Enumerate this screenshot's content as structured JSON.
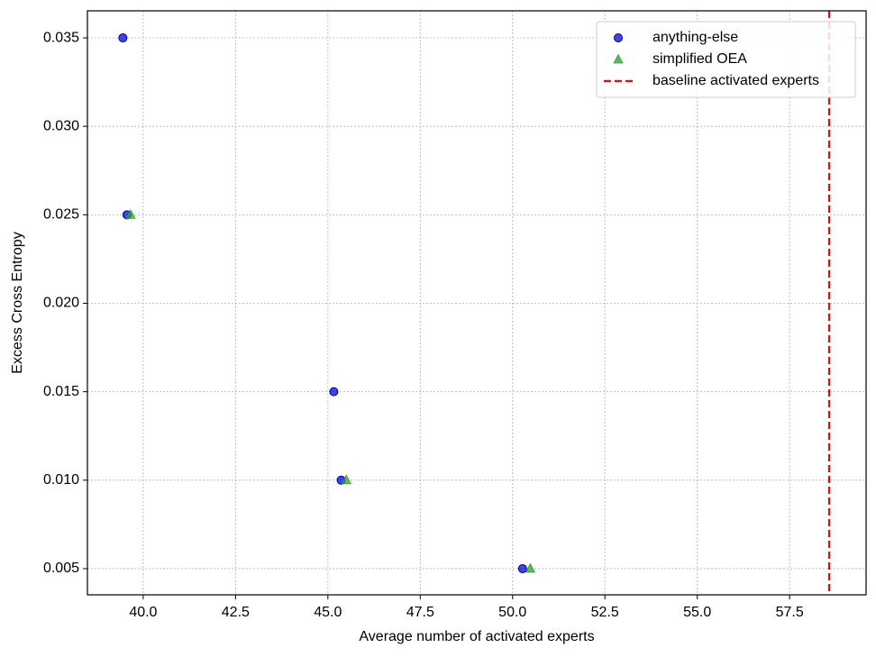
{
  "chart_data": {
    "type": "scatter",
    "x_label": "Average number of activated experts",
    "y_label": "Excess Cross Entropy",
    "xlim": [
      38.49,
      59.57
    ],
    "ylim": [
      0.00352,
      0.03653
    ],
    "xticks": [
      {
        "value": 40,
        "label": "40.0"
      },
      42.5,
      {
        "value": 45,
        "label": "45.0"
      },
      47.5,
      {
        "value": 50,
        "label": "50.0"
      },
      52.5,
      {
        "value": 55,
        "label": "55.0"
      },
      57.5
    ],
    "yticks": [
      0.005,
      {
        "value": 0.01,
        "label": "0.010"
      },
      0.015,
      {
        "value": 0.02,
        "label": "0.020"
      },
      0.025,
      {
        "value": 0.03,
        "label": "0.030"
      },
      0.035
    ],
    "grid": true,
    "legend": "upper right",
    "series": [
      {
        "name": "anything-else",
        "color": "#0000ff",
        "marker": "circle",
        "x": [
          39.45,
          39.56,
          45.16,
          45.36,
          50.27
        ],
        "values": [
          0.035,
          0.025,
          0.015,
          0.01,
          0.005
        ]
      },
      {
        "name": "simplified OEA",
        "color": "#2ca02c",
        "marker": "triangle",
        "x": [
          39.66,
          45.5,
          50.48
        ],
        "values": [
          0.025,
          0.01,
          0.005
        ]
      }
    ],
    "vlines": [
      {
        "name": "baseline activated experts",
        "color": "#ff0000",
        "x": 58.57
      }
    ]
  }
}
